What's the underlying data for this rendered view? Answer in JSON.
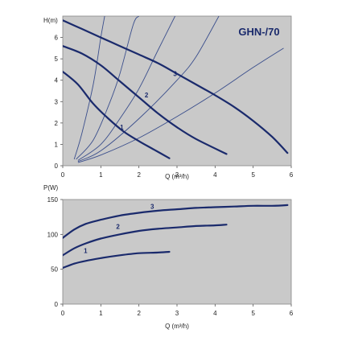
{
  "chart_data": [
    {
      "type": "line",
      "title": "GHN-/70",
      "ylabel": "H(m)",
      "xlabel": "Q (m³/h)",
      "xlim": [
        0,
        6
      ],
      "ylim": [
        0,
        7
      ],
      "xticks": [
        "0",
        "1",
        "2",
        "3",
        "4",
        "5",
        "6"
      ],
      "yticks": [
        "0",
        "1",
        "2",
        "3",
        "4",
        "5",
        "6"
      ],
      "grid": false,
      "colors": {
        "background": "#c9c9c9",
        "curve": "#1a2a6c",
        "system_curve": "#3a4e8c"
      },
      "series": [
        {
          "label": "1",
          "label_at": [
            1.55,
            1.7
          ],
          "x": [
            0,
            0.4,
            0.8,
            1.2,
            1.6,
            2.0,
            2.4,
            2.8
          ],
          "y": [
            4.4,
            3.8,
            2.9,
            2.2,
            1.6,
            1.15,
            0.75,
            0.35
          ]
        },
        {
          "label": "2",
          "label_at": [
            2.2,
            3.2
          ],
          "x": [
            0,
            0.5,
            1.0,
            1.5,
            2.0,
            2.5,
            3.0,
            3.5,
            4.3
          ],
          "y": [
            5.6,
            5.25,
            4.7,
            3.95,
            3.2,
            2.45,
            1.8,
            1.25,
            0.55
          ]
        },
        {
          "label": "3",
          "label_at": [
            2.95,
            4.2
          ],
          "x": [
            0,
            0.5,
            1.0,
            1.5,
            2.0,
            2.5,
            3.0,
            3.5,
            4.0,
            4.5,
            5.0,
            5.5,
            5.9
          ],
          "y": [
            6.8,
            6.4,
            6.0,
            5.6,
            5.2,
            4.8,
            4.3,
            3.8,
            3.3,
            2.75,
            2.1,
            1.35,
            0.6
          ]
        }
      ],
      "system_curves": [
        {
          "x": [
            0.3,
            0.5,
            0.8,
            1.0,
            1.1
          ],
          "y": [
            0.3,
            1.5,
            3.8,
            6.0,
            7.0
          ]
        },
        {
          "x": [
            0.35,
            0.8,
            1.2,
            1.5,
            1.85,
            2.0
          ],
          "y": [
            0.3,
            1.2,
            2.8,
            4.3,
            6.6,
            7.0
          ]
        },
        {
          "x": [
            0.4,
            1.0,
            1.5,
            2.0,
            2.5,
            2.95
          ],
          "y": [
            0.25,
            1.0,
            2.2,
            3.6,
            5.4,
            7.0
          ]
        },
        {
          "x": [
            0.4,
            1.0,
            2.0,
            3.0,
            3.5,
            4.1
          ],
          "y": [
            0.2,
            0.7,
            2.2,
            4.0,
            5.1,
            7.0
          ]
        },
        {
          "x": [
            0.4,
            1.0,
            2.0,
            3.0,
            4.0,
            5.0,
            5.8
          ],
          "y": [
            0.15,
            0.5,
            1.3,
            2.3,
            3.4,
            4.6,
            5.5
          ]
        }
      ]
    },
    {
      "type": "line",
      "title": "",
      "ylabel": "P(W)",
      "xlabel": "Q (m³/h)",
      "xlim": [
        0,
        6
      ],
      "ylim": [
        0,
        150
      ],
      "xticks": [
        "0",
        "1",
        "2",
        "3",
        "4",
        "5",
        "6"
      ],
      "yticks": [
        "0",
        "50",
        "100",
        "150"
      ],
      "grid": false,
      "colors": {
        "background": "#c9c9c9",
        "curve": "#1a2a6c"
      },
      "series": [
        {
          "label": "1",
          "label_at": [
            0.6,
            73
          ],
          "x": [
            0,
            0.3,
            0.6,
            1.0,
            1.5,
            2.0,
            2.5,
            2.8
          ],
          "y": [
            52,
            58,
            62,
            66,
            70,
            73,
            74,
            75
          ]
        },
        {
          "label": "2",
          "label_at": [
            1.45,
            108
          ],
          "x": [
            0,
            0.3,
            0.6,
            1.0,
            1.5,
            2.0,
            2.5,
            3.0,
            3.5,
            4.0,
            4.3
          ],
          "y": [
            70,
            80,
            87,
            94,
            100,
            105,
            108,
            110,
            112,
            113,
            114
          ]
        },
        {
          "label": "3",
          "label_at": [
            2.35,
            137
          ],
          "x": [
            0,
            0.3,
            0.6,
            1.0,
            1.5,
            2.0,
            2.5,
            3.0,
            3.5,
            4.0,
            4.5,
            5.0,
            5.5,
            5.9
          ],
          "y": [
            95,
            107,
            115,
            121,
            127,
            131,
            134,
            136,
            138,
            139,
            140,
            141,
            141,
            142
          ]
        }
      ]
    }
  ]
}
